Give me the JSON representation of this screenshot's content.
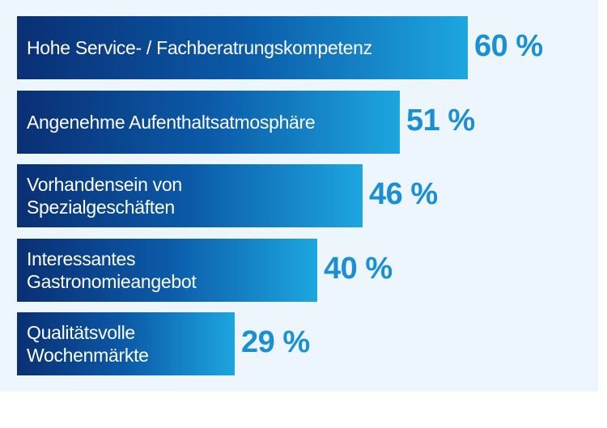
{
  "chart_data": {
    "type": "bar",
    "orientation": "horizontal",
    "categories": [
      "Hohe Service- / Fachberatrungskompetenz",
      "Angenehme Aufenthaltsatmosphäre",
      "Vorhandensein von\nSpezialgeschäften",
      "Interessantes\nGastronomieangebot",
      "Qualitätsvolle\nWochenmärkte"
    ],
    "values": [
      60,
      51,
      46,
      40,
      29
    ],
    "value_labels": [
      "60 %",
      "51 %",
      "46 %",
      "40 %",
      "29 %"
    ],
    "unit": "%",
    "xlim": [
      0,
      100
    ],
    "grid": false,
    "colors": {
      "bar_start": "#0a2f74",
      "bar_end": "#1da6df",
      "value_text": "#1a8fd6",
      "background": "#eef6fd"
    }
  }
}
